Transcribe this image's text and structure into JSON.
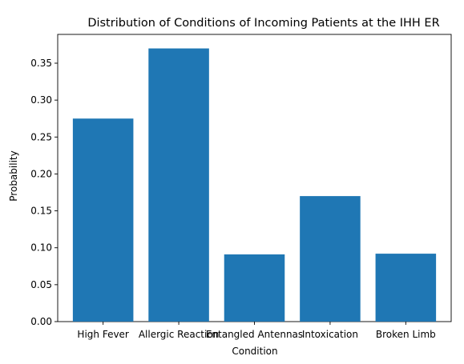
{
  "chart_data": {
    "type": "bar",
    "title": "Distribution of Conditions of Incoming Patients at the IHH ER",
    "xlabel": "Condition",
    "ylabel": "Probability",
    "categories": [
      "High Fever",
      "Allergic Reaction",
      "Entangled Antennas",
      "Intoxication",
      "Broken Limb"
    ],
    "values": [
      0.275,
      0.37,
      0.091,
      0.17,
      0.092
    ],
    "ylim": [
      0,
      0.389
    ],
    "yticks": [
      0.0,
      0.05,
      0.1,
      0.15,
      0.2,
      0.25,
      0.3,
      0.35
    ],
    "ytick_labels": [
      "0.00",
      "0.05",
      "0.10",
      "0.15",
      "0.20",
      "0.25",
      "0.30",
      "0.35"
    ],
    "bar_color": "#1f77b4",
    "grid": false,
    "legend": "none"
  }
}
